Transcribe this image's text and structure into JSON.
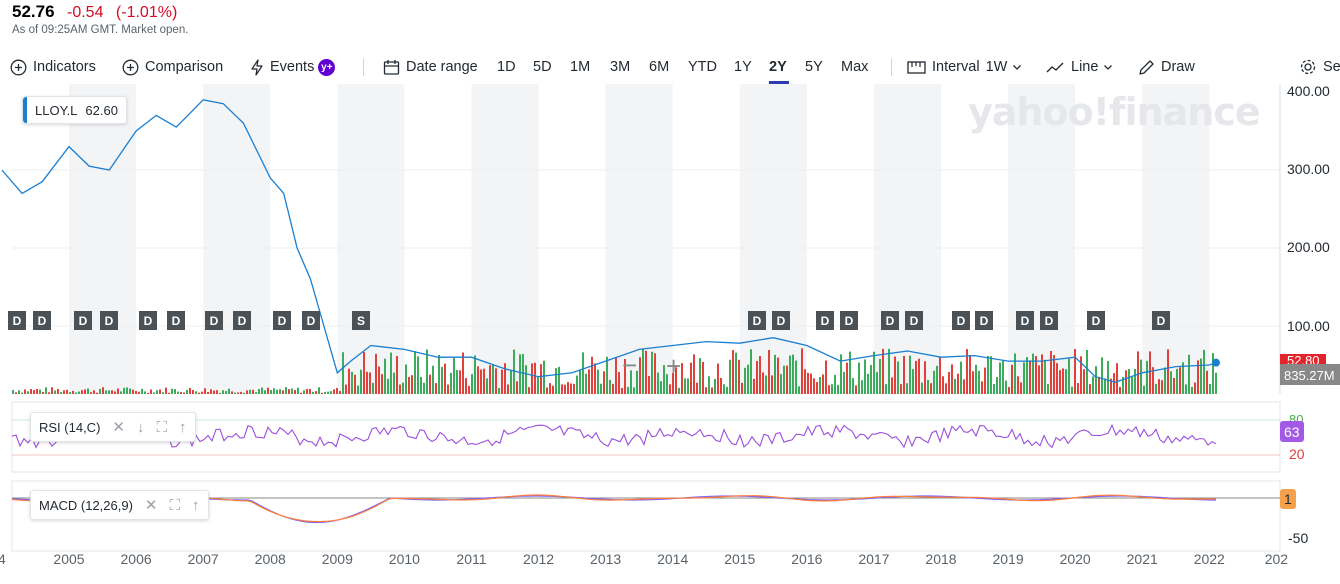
{
  "quote": {
    "price": "52.76",
    "change": "-0.54",
    "change_pct": "(-1.01%)",
    "as_of": "As of 09:25AM GMT. Market open."
  },
  "toolbar": {
    "indicators": "Indicators",
    "comparison": "Comparison",
    "events": "Events",
    "events_badge": "y+",
    "date_range": "Date range",
    "ranges": [
      "1D",
      "5D",
      "1M",
      "3M",
      "6M",
      "YTD",
      "1Y",
      "2Y",
      "5Y",
      "Max"
    ],
    "active_range": "2Y",
    "interval_label": "Interval",
    "interval_value": "1W",
    "line_label": "Line",
    "draw_label": "Draw",
    "settings_label": "Se"
  },
  "watermark": "yahoo!finance",
  "main_legend": {
    "symbol": "LLOY.L",
    "value": "62.60"
  },
  "price_axis": [
    "400.00",
    "300.00",
    "200.00",
    "100.00"
  ],
  "price_badge": "52.80",
  "volume_badge": "835.27M",
  "events": [
    "D",
    "D",
    "D",
    "D",
    "D",
    "D",
    "D",
    "D",
    "D",
    "D",
    "S",
    "D",
    "D",
    "D",
    "D",
    "D",
    "D",
    "D",
    "D",
    "D",
    "D",
    "D",
    "D"
  ],
  "zoom": {
    "minus": "−",
    "plus": "+"
  },
  "rsi": {
    "label": "RSI (14,C)",
    "value_badge": "63",
    "axis": [
      "80",
      "20"
    ]
  },
  "macd": {
    "label": "MACD (12,26,9)",
    "value_badge": "1",
    "axis": [
      "-50"
    ]
  },
  "x_axis": [
    "4",
    "2005",
    "2006",
    "2007",
    "2008",
    "2009",
    "2010",
    "2011",
    "2012",
    "2013",
    "2014",
    "2015",
    "2016",
    "2017",
    "2018",
    "2019",
    "2020",
    "2021",
    "2022",
    "202"
  ],
  "colors": {
    "price_line": "#1a7fd1",
    "rsi_line": "#9b4ddb",
    "macd_line": "#7b61ff",
    "signal_line": "#ff7e3a",
    "up": "#3cab5b",
    "down": "#e0413b",
    "rsi_badge": "#a259e6",
    "macd_badge": "#f5a04a",
    "price_badge": "#e3242b"
  },
  "chart_data": {
    "type": "line",
    "symbol": "LLOY.L",
    "x": [
      2004.0,
      2004.3,
      2004.6,
      2005.0,
      2005.3,
      2005.6,
      2006.0,
      2006.3,
      2006.6,
      2007.0,
      2007.3,
      2007.6,
      2008.0,
      2008.2,
      2008.4,
      2008.6,
      2008.8,
      2009.0,
      2009.2,
      2009.5,
      2010.0,
      2010.5,
      2011.0,
      2011.5,
      2012.0,
      2012.5,
      2013.0,
      2013.5,
      2014.0,
      2014.5,
      2015.0,
      2015.5,
      2016.0,
      2016.5,
      2017.0,
      2017.5,
      2018.0,
      2018.5,
      2019.0,
      2019.5,
      2020.0,
      2020.3,
      2020.6,
      2021.0,
      2021.5,
      2022.0,
      2022.1
    ],
    "y": [
      300,
      270,
      285,
      330,
      305,
      300,
      350,
      370,
      355,
      390,
      385,
      360,
      290,
      270,
      200,
      160,
      100,
      40,
      55,
      75,
      70,
      60,
      60,
      45,
      35,
      40,
      55,
      70,
      75,
      80,
      78,
      85,
      75,
      55,
      62,
      68,
      60,
      62,
      55,
      55,
      60,
      35,
      28,
      40,
      48,
      50,
      53
    ],
    "ylim": [
      0,
      420
    ]
  }
}
